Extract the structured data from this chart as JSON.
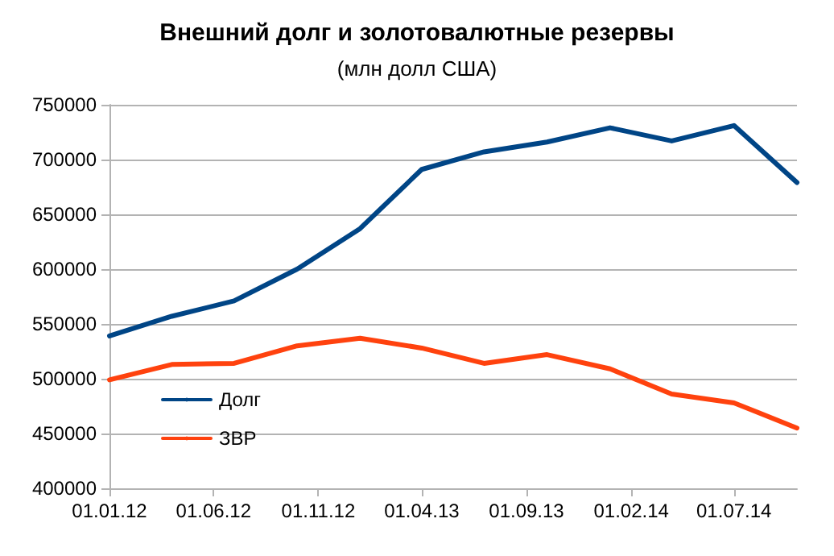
{
  "chart_data": {
    "type": "line",
    "title": "Внешний долг и золотовалютные резервы",
    "subtitle": "(млн долл США)",
    "x": [
      "2012-01-01",
      "2012-04-01",
      "2012-07-01",
      "2012-10-01",
      "2013-01-01",
      "2013-04-01",
      "2013-07-01",
      "2013-10-01",
      "2014-01-01",
      "2014-04-01",
      "2014-07-01",
      "2014-10-01"
    ],
    "series": [
      {
        "name": "Долг",
        "color": "#004586",
        "values": [
          539000,
          557000,
          571000,
          600000,
          637000,
          691000,
          707000,
          716000,
          729000,
          717000,
          731000,
          679000
        ]
      },
      {
        "name": "ЗВР",
        "color": "#ff420e",
        "values": [
          499000,
          513000,
          514000,
          530000,
          537000,
          528000,
          514000,
          522000,
          509000,
          486000,
          478000,
          455000
        ]
      }
    ],
    "xlim": [
      "2012-01-01",
      "2014-10-01"
    ],
    "xticks": [
      {
        "value": "2012-01-01",
        "label": "01.01.12"
      },
      {
        "value": "2012-06-01",
        "label": "01.06.12"
      },
      {
        "value": "2012-11-01",
        "label": "01.11.12"
      },
      {
        "value": "2013-04-01",
        "label": "01.04.13"
      },
      {
        "value": "2013-09-01",
        "label": "01.09.13"
      },
      {
        "value": "2014-02-01",
        "label": "01.02.14"
      },
      {
        "value": "2014-07-01",
        "label": "01.07.14"
      }
    ],
    "ylim": [
      400000,
      750000
    ],
    "yticks": [
      400000,
      450000,
      500000,
      550000,
      600000,
      650000,
      700000,
      750000
    ],
    "grid": "y",
    "legend": "bottom left",
    "marker": "none",
    "line_style": "solid"
  }
}
